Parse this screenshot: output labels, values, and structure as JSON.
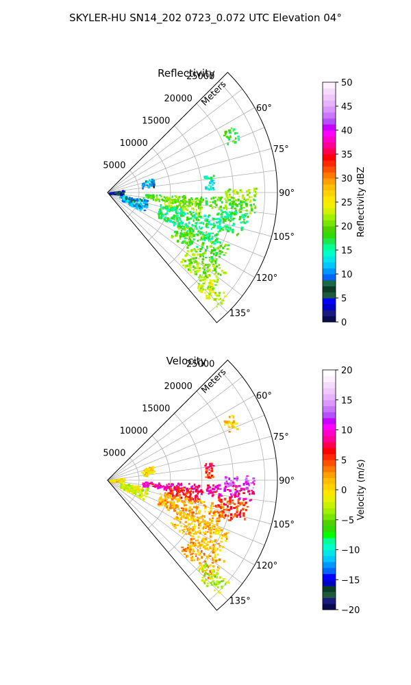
{
  "title": "SKYLER-HU  SN14_202  0723_0.072 UTC Elevation 04°",
  "chart_data": [
    {
      "type": "heatmap",
      "projection": "polar-sector",
      "title": "Reflectivity",
      "radial_label": "Meters",
      "radial_ticks": [
        5000,
        10000,
        15000,
        20000,
        25000
      ],
      "radial_range": [
        0,
        27000
      ],
      "azimuth_range_deg": [
        45,
        140
      ],
      "azimuth_ticks": [
        "60°",
        "75°",
        "90°",
        "105°",
        "120°",
        "135°"
      ],
      "azimuth_tick_values": [
        60,
        75,
        90,
        105,
        120,
        135
      ],
      "grid": true,
      "colorbar": {
        "label": "Reflectivity dBZ",
        "range": [
          0,
          50
        ],
        "ticks": [
          "0",
          "5",
          "10",
          "15",
          "20",
          "25",
          "30",
          "35",
          "40",
          "45",
          "50"
        ],
        "tick_values": [
          0,
          5,
          10,
          15,
          20,
          25,
          30,
          35,
          40,
          45,
          50
        ],
        "colors": [
          "#0a0a50",
          "#1a1a80",
          "#0000c8",
          "#0000ff",
          "#1e5a3c",
          "#0a3c28",
          "#1a6a4a",
          "#0064ff",
          "#0096ff",
          "#00c8ff",
          "#00e6e6",
          "#00ffc8",
          "#00ff96",
          "#1ee650",
          "#32dc00",
          "#50d200",
          "#78e600",
          "#a0f000",
          "#d2f000",
          "#f0f000",
          "#ffe600",
          "#ffd200",
          "#ffbe00",
          "#ffa000",
          "#ff7800",
          "#ff5000",
          "#ff2800",
          "#ff0000",
          "#ff0050",
          "#ff0096",
          "#ff00c8",
          "#ff00ff",
          "#c800ff",
          "#b450ff",
          "#c878ff",
          "#dc96ff",
          "#e6b4ff",
          "#f0c8ff",
          "#f5dcff",
          "#fff0ff"
        ]
      },
      "echo_regions": [
        {
          "az": [
            92,
            98
          ],
          "range": [
            5500,
            23500
          ],
          "value": 19
        },
        {
          "az": [
            95,
            104
          ],
          "range": [
            9000,
            15000
          ],
          "value": 21
        },
        {
          "az": [
            88,
            93
          ],
          "range": [
            18500,
            23500
          ],
          "value": 22
        },
        {
          "az": [
            102,
            116
          ],
          "range": [
            8500,
            19000
          ],
          "value": 16
        },
        {
          "az": [
            113,
            125
          ],
          "range": [
            12000,
            21000
          ],
          "value": 19
        },
        {
          "az": [
            124,
            134
          ],
          "range": [
            15500,
            22500
          ],
          "value": 21
        },
        {
          "az": [
            130,
            137
          ],
          "range": [
            20000,
            25000
          ],
          "value": 23
        },
        {
          "az": [
            80,
            88
          ],
          "range": [
            15500,
            17000
          ],
          "value": 14
        },
        {
          "az": [
            98,
            108
          ],
          "range": [
            17500,
            22500
          ],
          "value": 17
        },
        {
          "az": [
            62,
            68
          ],
          "range": [
            20500,
            22500
          ],
          "value": 18
        },
        {
          "az": [
            72,
            82
          ],
          "range": [
            5500,
            7500
          ],
          "value": 10
        },
        {
          "az": [
            100,
            118
          ],
          "range": [
            2000,
            6500
          ],
          "value": 11
        },
        {
          "az": [
            80,
            96
          ],
          "range": [
            200,
            2500
          ],
          "value": 6
        }
      ]
    },
    {
      "type": "heatmap",
      "projection": "polar-sector",
      "title": "Velocity",
      "radial_label": "Meters",
      "radial_ticks": [
        5000,
        10000,
        15000,
        20000,
        25000
      ],
      "radial_range": [
        0,
        27000
      ],
      "azimuth_range_deg": [
        45,
        140
      ],
      "azimuth_ticks": [
        "60°",
        "75°",
        "90°",
        "105°",
        "120°",
        "135°"
      ],
      "azimuth_tick_values": [
        60,
        75,
        90,
        105,
        120,
        135
      ],
      "grid": true,
      "colorbar": {
        "label": "Velocity (m/s)",
        "range": [
          -20,
          20
        ],
        "ticks": [
          "−20",
          "−15",
          "−10",
          "−5",
          "0",
          "5",
          "10",
          "15",
          "20"
        ],
        "tick_values": [
          -20,
          -15,
          -10,
          -5,
          0,
          5,
          10,
          15,
          20
        ],
        "colors": [
          "#0a0a50",
          "#1a1a80",
          "#1e5a3c",
          "#0a3c28",
          "#0000c8",
          "#0000ff",
          "#0064ff",
          "#0096ff",
          "#00c8ff",
          "#00e6e6",
          "#00ffc8",
          "#00ff96",
          "#00ff00",
          "#32dc00",
          "#50d200",
          "#78e600",
          "#a0f000",
          "#c8f000",
          "#e6f000",
          "#ffe600",
          "#ffd200",
          "#ffbe00",
          "#ffa000",
          "#ff7800",
          "#ff5000",
          "#ff2800",
          "#ff0000",
          "#ff0050",
          "#ff0096",
          "#ff00c8",
          "#ff00ff",
          "#c800ff",
          "#b450ff",
          "#c878ff",
          "#dc96ff",
          "#e6b4ff",
          "#f0c8ff",
          "#f5dcff",
          "#fff0ff",
          "#ffffff"
        ]
      },
      "echo_regions": [
        {
          "az": [
            92,
            98
          ],
          "range": [
            5500,
            23500
          ],
          "value": 9
        },
        {
          "az": [
            95,
            104
          ],
          "range": [
            9000,
            15000
          ],
          "value": 6
        },
        {
          "az": [
            88,
            93
          ],
          "range": [
            18500,
            23500
          ],
          "value": 12
        },
        {
          "az": [
            102,
            116
          ],
          "range": [
            8500,
            19000
          ],
          "value": 2
        },
        {
          "az": [
            113,
            125
          ],
          "range": [
            12000,
            21000
          ],
          "value": 1
        },
        {
          "az": [
            124,
            134
          ],
          "range": [
            15500,
            22500
          ],
          "value": 2
        },
        {
          "az": [
            130,
            137
          ],
          "range": [
            20000,
            25000
          ],
          "value": -3
        },
        {
          "az": [
            80,
            88
          ],
          "range": [
            15500,
            17000
          ],
          "value": 6
        },
        {
          "az": [
            98,
            108
          ],
          "range": [
            17500,
            22500
          ],
          "value": 5
        },
        {
          "az": [
            62,
            68
          ],
          "range": [
            20500,
            22500
          ],
          "value": 1
        },
        {
          "az": [
            72,
            82
          ],
          "range": [
            5500,
            7500
          ],
          "value": 0
        },
        {
          "az": [
            100,
            118
          ],
          "range": [
            2000,
            6500
          ],
          "value": -2
        },
        {
          "az": [
            80,
            96
          ],
          "range": [
            200,
            2500
          ],
          "value": 0
        }
      ]
    }
  ]
}
